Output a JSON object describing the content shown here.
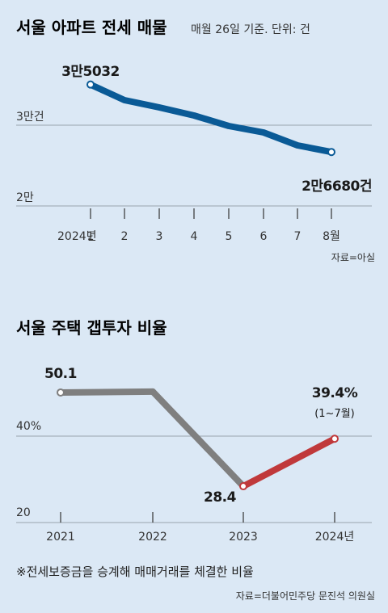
{
  "chart_data": [
    {
      "type": "line",
      "title": "서울 아파트 전세 매물",
      "subtitle": "매월 26일 기준. 단위: 건",
      "x_prefix": "2024년",
      "categories": [
        "1",
        "2",
        "3",
        "4",
        "5",
        "6",
        "7",
        "8월"
      ],
      "values": [
        35032,
        33100,
        32200,
        31200,
        29900,
        29100,
        27500,
        26680
      ],
      "ylim": [
        20000,
        36000
      ],
      "yticks": [
        {
          "value": 30000,
          "label": "3만건"
        },
        {
          "value": 20000,
          "label": "2만"
        }
      ],
      "annotations": {
        "first": "3만5032",
        "last": "2만6680건"
      },
      "source": "자료=아실",
      "line_color": "#0a5a96",
      "grid": true
    },
    {
      "type": "line",
      "title": "서울 주택 갭투자 비율",
      "categories": [
        "2021",
        "2022",
        "2023",
        "2024년"
      ],
      "values": [
        50.1,
        50.3,
        28.4,
        39.4
      ],
      "ylim": [
        20,
        55
      ],
      "yticks": [
        {
          "value": 40,
          "label": "40%"
        },
        {
          "value": 20,
          "label": "20"
        }
      ],
      "segment_colors": [
        "#7f7f7f",
        "#7f7f7f",
        "#c0393b"
      ],
      "annotations": {
        "first": "50.1",
        "min": "28.4",
        "last": "39.4%",
        "last_note": "(1~7월)"
      },
      "footnote": "※전세보증금을 승계해 매매거래를 체결한 비율",
      "source": "자료=더불어민주당 문진석 의원실",
      "grid": true
    }
  ]
}
